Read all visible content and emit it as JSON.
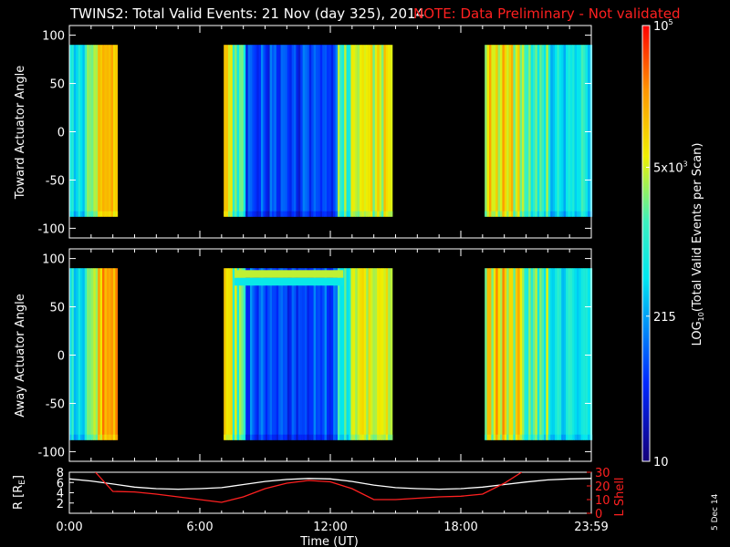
{
  "header": {
    "title": "TWINS2: Total Valid Events: 21 Nov (day 325), 2014",
    "note": "NOTE: Data Preliminary - Not validated",
    "title_color": "#ffffff",
    "note_color": "#ff2020"
  },
  "panel_top": {
    "ylabel": "Toward Actuator Angle",
    "yticks": [
      "100",
      "50",
      "0",
      "-50",
      "-100"
    ]
  },
  "panel_mid": {
    "ylabel": "Away Actuator Angle",
    "yticks": [
      "100",
      "50",
      "0",
      "-50",
      "-100"
    ]
  },
  "panel_bottom": {
    "left_label": "R [R",
    "left_sub": "E",
    "left_close": "]",
    "left_ticks": [
      "8",
      "6",
      "4",
      "2"
    ],
    "right_label": "L Shell",
    "right_ticks": [
      "30",
      "20",
      "10",
      "0"
    ],
    "xlabel": "Time (UT)",
    "xticks": [
      "0:00",
      "6:00",
      "12:00",
      "18:00",
      "23:59"
    ]
  },
  "colorbar": {
    "label_pre": "LOG",
    "label_sub": "10",
    "label_post": "(Total Valid Events per Scan)",
    "tick_top": "10",
    "tick_top_exp": "5",
    "tick_mid_base": "5x10",
    "tick_mid_exp": "3",
    "tick_215": "215",
    "tick_10": "10"
  },
  "date_stamp": "5 Dec 14",
  "chart_data": [
    {
      "type": "heatmap",
      "title": "TWINS2: Total Valid Events: 21 Nov (day 325), 2014",
      "xlabel": "Time (UT)",
      "ylabel": "Toward Actuator Angle",
      "xlim": [
        0,
        24
      ],
      "ylim": [
        -110,
        110
      ],
      "angle_range": [
        -88,
        90
      ],
      "data_intervals_hr": [
        [
          0,
          2.2
        ],
        [
          7.1,
          14.8
        ],
        [
          19.0,
          24
        ]
      ],
      "colorscale": "log10",
      "color_range": [
        10,
        100000
      ]
    },
    {
      "type": "heatmap",
      "xlabel": "Time (UT)",
      "ylabel": "Away Actuator Angle",
      "xlim": [
        0,
        24
      ],
      "ylim": [
        -110,
        110
      ],
      "angle_range": [
        -88,
        90
      ],
      "data_intervals_hr": [
        [
          0,
          2.2
        ],
        [
          7.1,
          14.8
        ],
        [
          19.0,
          24
        ]
      ],
      "colorscale": "log10",
      "color_range": [
        10,
        100000
      ]
    },
    {
      "type": "line",
      "xlabel": "Time (UT)",
      "xlim": [
        0,
        24
      ],
      "series": [
        {
          "name": "R [RE]",
          "color": "#ffffff",
          "axis": "left",
          "ylim": [
            0,
            8
          ],
          "x": [
            0,
            1,
            2,
            3,
            4,
            5,
            6,
            7,
            8,
            9,
            10,
            11,
            12,
            13,
            14,
            15,
            16,
            17,
            18,
            19,
            20,
            21,
            22,
            23,
            23.98
          ],
          "y": [
            6.7,
            6.3,
            5.7,
            5.1,
            4.8,
            4.7,
            4.8,
            5.0,
            5.6,
            6.2,
            6.6,
            6.8,
            6.7,
            6.2,
            5.5,
            5.0,
            4.8,
            4.7,
            4.8,
            5.1,
            5.6,
            6.1,
            6.5,
            6.7,
            6.8
          ]
        },
        {
          "name": "L Shell",
          "color": "#ff2020",
          "axis": "right",
          "ylim": [
            0,
            30
          ],
          "x": [
            1.2,
            2.0,
            3,
            4,
            5,
            6,
            7,
            8,
            9,
            10,
            11,
            12,
            13,
            14,
            15,
            16,
            17,
            18,
            19,
            20,
            20.8
          ],
          "y": [
            30,
            16,
            15.6,
            14,
            12,
            10,
            8,
            12,
            18,
            22,
            24,
            23,
            18,
            10,
            10,
            11,
            12,
            12.5,
            14,
            22,
            30
          ]
        }
      ]
    }
  ]
}
